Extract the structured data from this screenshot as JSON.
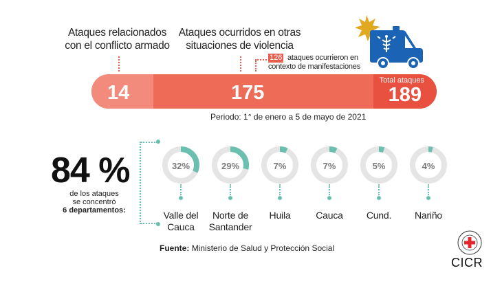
{
  "labels": {
    "armed_conflict": "Ataques relacionados con el conflicto armado",
    "other_situations": "Ataques ocurridos en otras situaciones de violencia",
    "manifestations_count": "126",
    "manifestations_text": "ataques ocurrieron en contexto de manifestaciones"
  },
  "bar": {
    "conflict_value": "14",
    "other_value": "175",
    "total_label": "Total ataques",
    "total_value": "189"
  },
  "period": "Periodo: 1° de enero a 5 de mayo de 2021",
  "concentration": {
    "percent": "84 %",
    "desc_line1": "de los ataques",
    "desc_line2": "se concentró",
    "desc_line3": "6 departamentos:"
  },
  "departments": [
    {
      "name": "Valle del Cauca",
      "value": "32%",
      "fraction": 0.32
    },
    {
      "name": "Norte de Santander",
      "value": "29%",
      "fraction": 0.29
    },
    {
      "name": "Huila",
      "value": "7%",
      "fraction": 0.07
    },
    {
      "name": "Cauca",
      "value": "7%",
      "fraction": 0.07
    },
    {
      "name": "Cund.",
      "value": "5%",
      "fraction": 0.05
    },
    {
      "name": "Nariño",
      "value": "4%",
      "fraction": 0.04
    }
  ],
  "source": {
    "label": "Fuente:",
    "text": "Ministerio de Salud y Protección Social"
  },
  "org": "CICR",
  "colors": {
    "bar_main": "#ee6b58",
    "bar_light": "#f28b7b",
    "bar_dark": "#e8503f",
    "teal": "#6bbfae",
    "donut_bg": "#e5e5e5",
    "ambulance": "#1b63b5",
    "burst": "#e0a91f"
  }
}
